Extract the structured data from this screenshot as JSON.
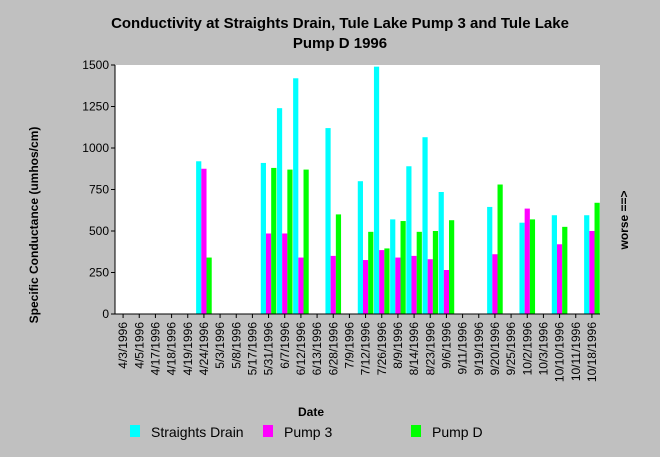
{
  "chart_data": {
    "type": "bar",
    "title": "Conductivity at Straights Drain, Tule Lake Pump 3 and Tule Lake Pump D 1996",
    "xlabel": "Date",
    "ylabel": "Specific Conductance (umhos/cm)",
    "right_label": "worse ==>",
    "ylim": [
      0,
      1500
    ],
    "yticks": [
      0,
      250,
      500,
      750,
      1000,
      1250,
      1500
    ],
    "grid": false,
    "legend_placement": "bottom",
    "categories": [
      "4/3/1996",
      "4/5/1996",
      "4/17/1996",
      "4/18/1996",
      "4/19/1996",
      "4/24/1996",
      "5/3/1996",
      "5/8/1996",
      "5/17/1996",
      "5/31/1996",
      "6/7/1996",
      "6/12/1996",
      "6/13/1996",
      "6/28/1996",
      "7/9/1996",
      "7/12/1996",
      "7/26/1996",
      "8/9/1996",
      "8/14/1996",
      "8/23/1996",
      "9/6/1996",
      "9/11/1996",
      "9/19/1996",
      "9/20/1996",
      "9/25/1996",
      "10/2/1996",
      "10/3/1996",
      "10/10/1996",
      "10/11/1996",
      "10/18/1996"
    ],
    "series": [
      {
        "name": "Straights Drain",
        "color": "#00ffff",
        "values": [
          null,
          null,
          null,
          null,
          null,
          920,
          null,
          null,
          null,
          910,
          1240,
          1420,
          null,
          1120,
          null,
          800,
          1490,
          570,
          890,
          1065,
          735,
          null,
          null,
          645,
          null,
          550,
          null,
          595,
          null,
          595
        ]
      },
      {
        "name": "Pump 3",
        "color": "#ff00ff",
        "values": [
          null,
          null,
          null,
          null,
          null,
          875,
          null,
          null,
          null,
          485,
          485,
          340,
          null,
          350,
          null,
          325,
          385,
          340,
          350,
          330,
          265,
          null,
          null,
          360,
          null,
          635,
          null,
          420,
          null,
          500
        ]
      },
      {
        "name": "Pump D",
        "color": "#00ff00",
        "values": [
          null,
          null,
          null,
          null,
          null,
          340,
          null,
          null,
          null,
          880,
          870,
          870,
          null,
          600,
          null,
          495,
          395,
          560,
          495,
          500,
          565,
          null,
          null,
          780,
          null,
          570,
          null,
          525,
          null,
          670
        ]
      }
    ]
  }
}
